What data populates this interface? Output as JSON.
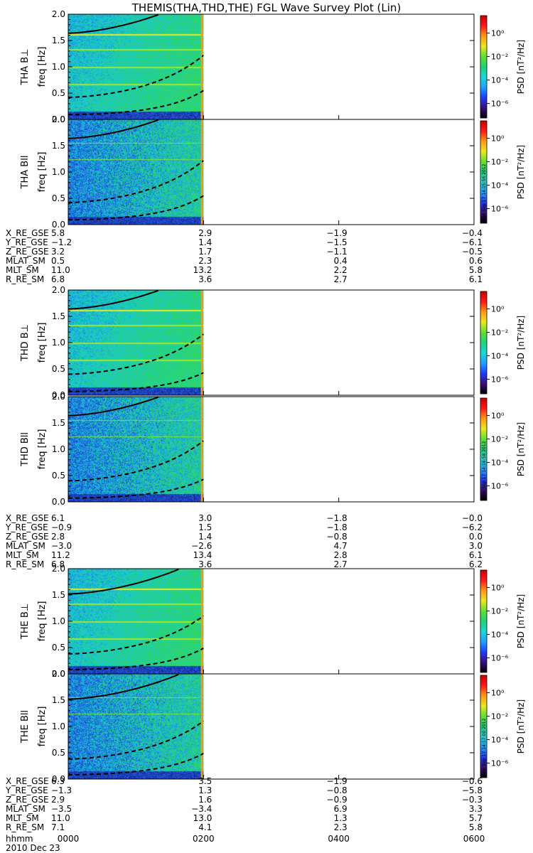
{
  "chart_data": {
    "type": "heatmap",
    "title": "THEMIS(THA,THD,THE) FGL Wave Survey Plot (Lin)",
    "ylabel_units": "freq [Hz]",
    "colorbar_label": "PSD [nT²/Hz]",
    "colorbar_ticks": [
      "10⁻⁶",
      "10⁻⁴",
      "10⁻²",
      "10⁰"
    ],
    "colorbar_exponents": [
      -6,
      -4,
      -2,
      0
    ],
    "yticks": [
      0.0,
      0.5,
      1.0,
      1.5,
      2.0
    ],
    "ytick_labels": [
      "0.0",
      "0.5",
      "1.0",
      "1.5",
      "2.0"
    ],
    "ylim": [
      0,
      2
    ],
    "xlim_hours": [
      0,
      6
    ],
    "data_coverage_hours": [
      0,
      2
    ],
    "panels": [
      {
        "probe": "THA",
        "component": "B⊥",
        "label": "THA B⊥",
        "top": 20,
        "harmonics_gyro_hz": [
          1.64,
          0.42,
          0.09
        ],
        "timestamp": ""
      },
      {
        "probe": "THA",
        "component": "Bll",
        "label": "THA Bll",
        "top": 168,
        "harmonics_gyro_hz": [
          1.64,
          0.42,
          0.09
        ],
        "timestamp": "Mon Sep 17 14:15:56 2012"
      },
      {
        "probe": "THD",
        "component": "B⊥",
        "label": "THD B⊥",
        "top": 408,
        "harmonics_gyro_hz": [
          1.64,
          0.4,
          0.07
        ],
        "timestamp": ""
      },
      {
        "probe": "THD",
        "component": "Bll",
        "label": "THD Bll",
        "top": 558,
        "harmonics_gyro_hz": [
          1.64,
          0.4,
          0.07
        ],
        "timestamp": "Mon Sep 17 14:16:58 2012"
      },
      {
        "probe": "THE",
        "component": "B⊥",
        "label": "THE B⊥",
        "top": 800,
        "harmonics_gyro_hz": [
          1.52,
          0.38,
          0.08
        ],
        "timestamp": ""
      },
      {
        "probe": "THE",
        "component": "Bll",
        "label": "THE Bll",
        "top": 948,
        "harmonics_gyro_hz": [
          1.52,
          0.38,
          0.08
        ],
        "timestamp": "Mon Sep 17 14:17:00 2012"
      }
    ],
    "ephemeris_blocks": [
      {
        "probe": "THA",
        "top": 322,
        "rows": [
          {
            "label": "X_RE_GSE",
            "values": [
              "5.8",
              "2.9",
              "-1.9",
              "-0.4"
            ]
          },
          {
            "label": "Y_RE_GSE",
            "values": [
              "-1.2",
              "1.4",
              "-1.5",
              "-6.1"
            ]
          },
          {
            "label": "Z_RE_GSE",
            "values": [
              "3.2",
              "1.7",
              "-1.1",
              "-0.5"
            ]
          },
          {
            "label": "MLAT_SM",
            "values": [
              "0.5",
              "2.3",
              "0.4",
              "0.6"
            ]
          },
          {
            "label": "MLT_SM",
            "values": [
              "11.0",
              "13.2",
              "2.2",
              "5.8"
            ]
          },
          {
            "label": "R_RE_SM",
            "values": [
              "6.8",
              "3.6",
              "2.7",
              "6.1"
            ]
          }
        ]
      },
      {
        "probe": "THD",
        "top": 723,
        "rows": [
          {
            "label": "X_RE_GSE",
            "values": [
              "6.1",
              "3.0",
              "-1.8",
              "-0.0"
            ]
          },
          {
            "label": "Y_RE_GSE",
            "values": [
              "-0.9",
              "1.5",
              "-1.8",
              "-6.2"
            ]
          },
          {
            "label": "Z_RE_GSE",
            "values": [
              "2.8",
              "1.4",
              "-0.8",
              "0.0"
            ]
          },
          {
            "label": "MLAT_SM",
            "values": [
              "-3.0",
              "-2.6",
              "4.7",
              "3.0"
            ]
          },
          {
            "label": "MLT_SM",
            "values": [
              "11.2",
              "13.4",
              "2.8",
              "6.1"
            ]
          },
          {
            "label": "R_RE_SM",
            "values": [
              "6.8",
              "3.6",
              "2.7",
              "6.2"
            ]
          }
        ]
      },
      {
        "probe": "THE",
        "top": 1093,
        "rows": [
          {
            "label": "X_RE_GSE",
            "values": [
              "6.3",
              "3.5",
              "-1.9",
              "-0.6"
            ]
          },
          {
            "label": "Y_RE_GSE",
            "values": [
              "-1.3",
              "1.3",
              "-0.8",
              "-5.8"
            ]
          },
          {
            "label": "Z_RE_GSE",
            "values": [
              "2.9",
              "1.6",
              "-0.9",
              "-0.3"
            ]
          },
          {
            "label": "MLAT_SM",
            "values": [
              "-3.5",
              "-3.4",
              "6.9",
              "3.3"
            ]
          },
          {
            "label": "MLT_SM",
            "values": [
              "11.0",
              "13.0",
              "1.3",
              "5.7"
            ]
          },
          {
            "label": "R_RE_SM",
            "values": [
              "7.1",
              "4.1",
              "2.3",
              "5.8"
            ]
          }
        ]
      }
    ],
    "time_axis": {
      "label": "hhmm",
      "ticks": [
        "0000",
        "0200",
        "0400",
        "0600"
      ],
      "tick_hours": [
        0,
        2,
        4,
        6
      ],
      "date": "2010 Dec 23"
    },
    "colors": {
      "background": "#ffffff",
      "axes": "#000000",
      "colorscale": [
        "#000000",
        "#3a0f7a",
        "#1e3cff",
        "#1fa0ff",
        "#19d8d8",
        "#1fd27a",
        "#60e030",
        "#e8e820",
        "#ff9a10",
        "#ff1a1a",
        "#c80000"
      ]
    }
  }
}
